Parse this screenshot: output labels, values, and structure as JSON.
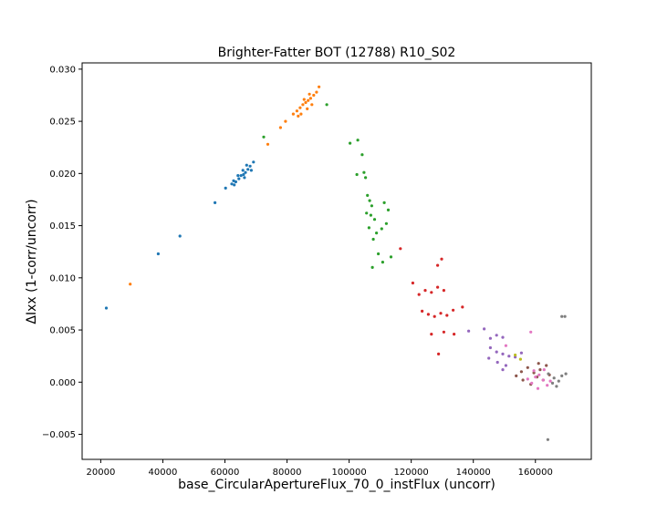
{
  "chart_data": {
    "type": "scatter",
    "title": "Brighter-Fatter BOT (12788) R10_S02",
    "xlabel": "base_CircularApertureFlux_70_0_instFlux (uncorr)",
    "ylabel": "ΔIxx (1-corr/uncorr)",
    "xlim": [
      14000,
      178000
    ],
    "ylim": [
      -0.0074,
      0.0306
    ],
    "xticks": [
      20000,
      40000,
      60000,
      80000,
      100000,
      120000,
      140000,
      160000
    ],
    "xtick_labels": [
      "20000",
      "40000",
      "60000",
      "80000",
      "100000",
      "120000",
      "140000",
      "160000"
    ],
    "yticks": [
      -0.005,
      0.0,
      0.005,
      0.01,
      0.015,
      0.02,
      0.025,
      0.03
    ],
    "ytick_labels": [
      "−0.005",
      "0.000",
      "0.005",
      "0.010",
      "0.015",
      "0.020",
      "0.025",
      "0.030"
    ],
    "grid": false,
    "legend": "none",
    "series": [
      {
        "color": "#1f77b4",
        "points": [
          [
            21800,
            0.0071
          ],
          [
            38500,
            0.0123
          ],
          [
            45500,
            0.014
          ],
          [
            56800,
            0.0172
          ],
          [
            60200,
            0.0186
          ],
          [
            62200,
            0.019
          ],
          [
            63500,
            0.0192
          ],
          [
            64500,
            0.0195
          ],
          [
            65200,
            0.0198
          ],
          [
            66000,
            0.0199
          ],
          [
            66600,
            0.0201
          ],
          [
            67400,
            0.0204
          ],
          [
            68100,
            0.0207
          ],
          [
            69200,
            0.0211
          ],
          [
            63000,
            0.0189
          ],
          [
            65800,
            0.0203
          ],
          [
            64200,
            0.0198
          ],
          [
            67000,
            0.0208
          ],
          [
            66300,
            0.0196
          ],
          [
            68500,
            0.0203
          ],
          [
            62800,
            0.0193
          ]
        ]
      },
      {
        "color": "#ff7f0e",
        "points": [
          [
            29500,
            0.0094
          ],
          [
            73800,
            0.0228
          ],
          [
            77900,
            0.0244
          ],
          [
            79500,
            0.025
          ],
          [
            82000,
            0.0257
          ],
          [
            83200,
            0.026
          ],
          [
            84200,
            0.0263
          ],
          [
            85100,
            0.0266
          ],
          [
            86000,
            0.0268
          ],
          [
            86800,
            0.027
          ],
          [
            87600,
            0.0272
          ],
          [
            88600,
            0.0275
          ],
          [
            89500,
            0.0278
          ],
          [
            90300,
            0.0283
          ],
          [
            84500,
            0.0257
          ],
          [
            86500,
            0.0262
          ],
          [
            88000,
            0.0266
          ],
          [
            85500,
            0.0271
          ],
          [
            87200,
            0.0276
          ],
          [
            83600,
            0.0255
          ]
        ]
      },
      {
        "color": "#2ca02c",
        "points": [
          [
            72500,
            0.0235
          ],
          [
            92800,
            0.0266
          ],
          [
            100300,
            0.0229
          ],
          [
            102800,
            0.0232
          ],
          [
            104200,
            0.0218
          ],
          [
            104800,
            0.0201
          ],
          [
            105300,
            0.0196
          ],
          [
            102500,
            0.0199
          ],
          [
            105900,
            0.0179
          ],
          [
            106600,
            0.0174
          ],
          [
            107300,
            0.0169
          ],
          [
            105600,
            0.0162
          ],
          [
            107000,
            0.016
          ],
          [
            108200,
            0.0156
          ],
          [
            106400,
            0.0148
          ],
          [
            108800,
            0.0143
          ],
          [
            110500,
            0.0147
          ],
          [
            112000,
            0.0152
          ],
          [
            107800,
            0.0137
          ],
          [
            109400,
            0.0123
          ],
          [
            110800,
            0.0115
          ],
          [
            107500,
            0.011
          ],
          [
            113500,
            0.012
          ],
          [
            112600,
            0.0165
          ],
          [
            111300,
            0.0172
          ]
        ]
      },
      {
        "color": "#d62728",
        "points": [
          [
            116500,
            0.0128
          ],
          [
            120500,
            0.0095
          ],
          [
            122500,
            0.0084
          ],
          [
            124500,
            0.0088
          ],
          [
            126500,
            0.0086
          ],
          [
            128500,
            0.0091
          ],
          [
            130500,
            0.0088
          ],
          [
            123500,
            0.0068
          ],
          [
            125500,
            0.0065
          ],
          [
            127500,
            0.0063
          ],
          [
            129500,
            0.0066
          ],
          [
            131500,
            0.0064
          ],
          [
            133500,
            0.0069
          ],
          [
            126500,
            0.0046
          ],
          [
            130500,
            0.0048
          ],
          [
            133800,
            0.0046
          ],
          [
            128500,
            0.0112
          ],
          [
            129800,
            0.0118
          ],
          [
            128800,
            0.0027
          ],
          [
            136500,
            0.0072
          ]
        ]
      },
      {
        "color": "#9467bd",
        "points": [
          [
            138500,
            0.0049
          ],
          [
            143500,
            0.0051
          ],
          [
            145500,
            0.0042
          ],
          [
            147500,
            0.0045
          ],
          [
            149500,
            0.0043
          ],
          [
            145500,
            0.0033
          ],
          [
            147500,
            0.0029
          ],
          [
            149500,
            0.0027
          ],
          [
            151500,
            0.0025
          ],
          [
            153500,
            0.0024
          ],
          [
            145000,
            0.0023
          ],
          [
            147800,
            0.0019
          ],
          [
            150500,
            0.0016
          ],
          [
            149500,
            0.0012
          ],
          [
            155500,
            0.0028
          ]
        ]
      },
      {
        "color": "#8c564b",
        "points": [
          [
            153800,
            0.0006
          ],
          [
            155500,
            0.001
          ],
          [
            157500,
            0.0014
          ],
          [
            159500,
            0.0009
          ],
          [
            161500,
            0.0012
          ],
          [
            163500,
            0.0016
          ],
          [
            156000,
            0.0002
          ],
          [
            158500,
            -0.0002
          ],
          [
            160500,
            0.0005
          ],
          [
            162500,
            0.0002
          ],
          [
            164500,
            0.0007
          ],
          [
            161000,
            0.0018
          ]
        ]
      },
      {
        "color": "#e377c2",
        "points": [
          [
            157500,
            0.0003
          ],
          [
            158800,
            -0.0001
          ],
          [
            160000,
            0.0005
          ],
          [
            161200,
            0.0007
          ],
          [
            162500,
            0.0002
          ],
          [
            163800,
            -0.0003
          ],
          [
            164800,
            0.0001
          ],
          [
            159500,
            0.0011
          ],
          [
            162800,
            0.0012
          ],
          [
            160800,
            -0.0006
          ],
          [
            150500,
            0.0035
          ],
          [
            158500,
            0.0048
          ]
        ]
      },
      {
        "color": "#7f7f7f",
        "points": [
          [
            164200,
            0.0008
          ],
          [
            166000,
            0.0004
          ],
          [
            167500,
            0.0001
          ],
          [
            168500,
            0.0006
          ],
          [
            169800,
            0.0008
          ],
          [
            165500,
            -0.0001
          ],
          [
            166800,
            -0.0004
          ],
          [
            164000,
            -0.0055
          ],
          [
            168500,
            0.0063
          ],
          [
            169500,
            0.0063
          ]
        ]
      },
      {
        "color": "#bcbd22",
        "points": [
          [
            153500,
            0.0026
          ],
          [
            155200,
            0.0022
          ]
        ]
      }
    ]
  }
}
